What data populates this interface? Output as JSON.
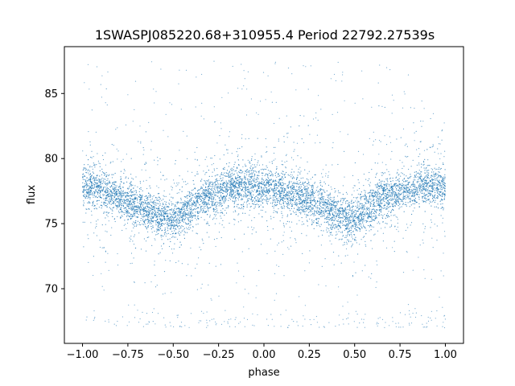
{
  "chart_data": {
    "type": "scatter",
    "title": "1SWASPJ085220.68+310955.4 Period 22792.27539s",
    "xlabel": "phase",
    "ylabel": "flux",
    "xlim": [
      -1.1,
      1.1
    ],
    "ylim": [
      65.8,
      88.6
    ],
    "xticks": [
      -1.0,
      -0.75,
      -0.5,
      -0.25,
      0.0,
      0.25,
      0.5,
      0.75,
      1.0
    ],
    "xtick_labels": [
      "−1.00",
      "−0.75",
      "−0.50",
      "−0.25",
      "0.00",
      "0.25",
      "0.50",
      "0.75",
      "1.00"
    ],
    "yticks": [
      70,
      75,
      80,
      85
    ],
    "ytick_labels": [
      "70",
      "75",
      "80",
      "85"
    ],
    "grid": false,
    "legend": "none",
    "marker_color": "#1f77b4",
    "series": [
      {
        "phase": [
          -1.0,
          -0.95,
          -0.9,
          -0.85,
          -0.8,
          -0.75,
          -0.7,
          -0.65,
          -0.6,
          -0.55,
          -0.5,
          -0.45,
          -0.4,
          -0.35,
          -0.3,
          -0.25,
          -0.2,
          -0.15,
          -0.1,
          -0.05,
          0.0,
          0.05,
          0.1,
          0.15,
          0.2,
          0.25,
          0.3,
          0.35,
          0.4,
          0.45,
          0.5,
          0.55,
          0.6,
          0.65,
          0.7,
          0.75,
          0.8,
          0.85,
          0.9,
          0.95,
          1.0
        ],
        "flux_median": [
          77.9,
          77.8,
          77.6,
          77.3,
          77.0,
          76.6,
          76.3,
          76.0,
          75.7,
          75.4,
          75.3,
          75.8,
          76.4,
          76.9,
          77.2,
          77.4,
          77.7,
          77.8,
          77.9,
          77.9,
          77.8,
          77.7,
          77.5,
          77.3,
          77.1,
          76.8,
          76.5,
          76.1,
          75.7,
          75.4,
          75.3,
          75.9,
          76.5,
          76.9,
          77.2,
          77.5,
          77.6,
          77.8,
          77.9,
          77.9,
          77.9
        ]
      }
    ]
  }
}
